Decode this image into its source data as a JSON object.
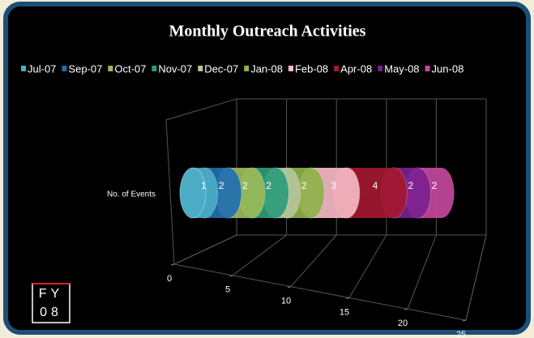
{
  "chart_data": {
    "type": "stacked-bar-3d",
    "title": "Monthly Outreach Activities",
    "categories": [
      "No. of Events"
    ],
    "series": [
      {
        "name": "Jul-07",
        "color": "#4bacc6",
        "values": [
          1
        ]
      },
      {
        "name": "Sep-07",
        "color": "#1f6fb0",
        "values": [
          2
        ]
      },
      {
        "name": "Oct-07",
        "color": "#9bbb59",
        "values": [
          2
        ]
      },
      {
        "name": "Nov-07",
        "color": "#2e9b7a",
        "values": [
          2
        ]
      },
      {
        "name": "Dec-07",
        "color": "#b4c49c",
        "values": [
          1
        ]
      },
      {
        "name": "Jan-08",
        "color": "#8db048",
        "values": [
          2
        ]
      },
      {
        "name": "Feb-08",
        "color": "#f5b8c4",
        "values": [
          3
        ]
      },
      {
        "name": "Apr-08",
        "color": "#a3182f",
        "values": [
          4
        ]
      },
      {
        "name": "May-08",
        "color": "#7a1f8e",
        "values": [
          2
        ]
      },
      {
        "name": "Jun-08",
        "color": "#c4489c",
        "values": [
          2
        ]
      }
    ],
    "xlim": [
      0,
      25
    ],
    "xticks": [
      0,
      5,
      10,
      15,
      20,
      25
    ],
    "grid": true,
    "legend": "top",
    "badge": [
      "FY",
      "08"
    ]
  }
}
